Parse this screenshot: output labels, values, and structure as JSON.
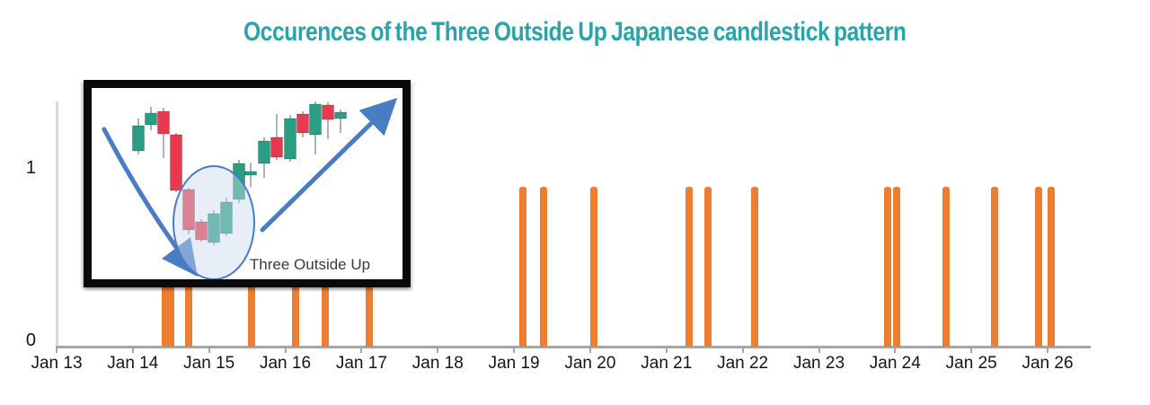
{
  "title": {
    "text": "Occurences of the Three Outside Up Japanese candlestick pattern",
    "color": "#2AA3A9"
  },
  "chart_data": {
    "type": "bar",
    "title": "Occurences of the Three Outside Up Japanese candlestick pattern",
    "x_axis": {
      "tick_labels": [
        "Jan 13",
        "Jan 14",
        "Jan 15",
        "Jan 16",
        "Jan 17",
        "Jan 18",
        "Jan 19",
        "Jan 20",
        "Jan 21",
        "Jan 22",
        "Jan 23",
        "Jan 24",
        "Jan 25",
        "Jan 26"
      ],
      "unit": "days"
    },
    "y_axis": {
      "tick_labels": [
        "0",
        "1"
      ],
      "ylim": [
        0,
        1.38
      ]
    },
    "grid": false,
    "legend": false,
    "bar_color": "#ED7D31",
    "bar_value": 0.9,
    "occurrence_count": 19,
    "occurrences_days_after_jan13": [
      1.42,
      1.5,
      1.73,
      2.56,
      3.13,
      3.52,
      4.1,
      6.12,
      6.39,
      7.05,
      8.3,
      8.54,
      9.16,
      10.9,
      11.02,
      11.67,
      12.3,
      12.88,
      13.05
    ]
  },
  "inset": {
    "caption": "Three Outside Up",
    "border_color": "#0a0a0a",
    "arrow_color": "#4A7CC4",
    "ellipse_fill": "#C9D9F0",
    "wick_color": "#9aa0a6",
    "candle_up_color": "#2A9D82",
    "candle_down_color": "#E83A4E",
    "candles": [
      {
        "x": 52,
        "dir": "up",
        "body": [
          42,
          70
        ],
        "wick": [
          34,
          74
        ]
      },
      {
        "x": 66,
        "dir": "up",
        "body": [
          28,
          41
        ],
        "wick": [
          21,
          47
        ]
      },
      {
        "x": 80,
        "dir": "down",
        "body": [
          26,
          51
        ],
        "wick": [
          22,
          78
        ]
      },
      {
        "x": 94,
        "dir": "down",
        "body": [
          52,
          114
        ],
        "wick": [
          50,
          116
        ]
      },
      {
        "x": 108,
        "dir": "down",
        "body": [
          113,
          158
        ],
        "wick": [
          111,
          163
        ]
      },
      {
        "x": 122,
        "dir": "down",
        "body": [
          149,
          169
        ],
        "wick": [
          146,
          171
        ]
      },
      {
        "x": 136,
        "dir": "up",
        "body": [
          140,
          172
        ],
        "wick": [
          136,
          175
        ]
      },
      {
        "x": 150,
        "dir": "up",
        "body": [
          127,
          162
        ],
        "wick": [
          122,
          165
        ]
      },
      {
        "x": 164,
        "dir": "up",
        "body": [
          84,
          124
        ],
        "wick": [
          80,
          128
        ]
      },
      {
        "x": 177,
        "dir": "up",
        "body": [
          93,
          97
        ],
        "wick": [
          83,
          110
        ]
      },
      {
        "x": 192,
        "dir": "up",
        "body": [
          59,
          84
        ],
        "wick": [
          55,
          100
        ]
      },
      {
        "x": 206,
        "dir": "down",
        "body": [
          55,
          77
        ],
        "wick": [
          29,
          80
        ]
      },
      {
        "x": 221,
        "dir": "up",
        "body": [
          34,
          79
        ],
        "wick": [
          30,
          82
        ]
      },
      {
        "x": 235,
        "dir": "down",
        "body": [
          29,
          50
        ],
        "wick": [
          26,
          55
        ]
      },
      {
        "x": 249,
        "dir": "up",
        "body": [
          18,
          52
        ],
        "wick": [
          15,
          74
        ]
      },
      {
        "x": 263,
        "dir": "down",
        "body": [
          19,
          35
        ],
        "wick": [
          16,
          57
        ]
      },
      {
        "x": 277,
        "dir": "up",
        "body": [
          27,
          34
        ],
        "wick": [
          24,
          50
        ]
      }
    ]
  }
}
